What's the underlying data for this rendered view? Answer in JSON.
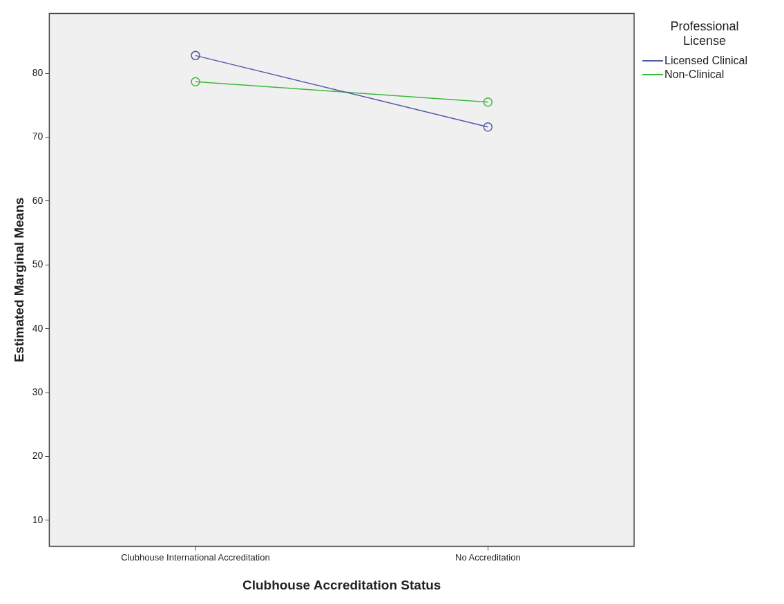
{
  "chart_data": {
    "type": "line",
    "xlabel": "Clubhouse Accreditation Status",
    "ylabel": "Estimated Marginal Means",
    "legend_title": "Professional License",
    "legend": "top right",
    "marker": "circle",
    "grid": false,
    "categories": [
      "Clubhouse International Accreditation",
      "No Accreditation"
    ],
    "ylim": [
      5.9,
      89.4
    ],
    "yticks": [
      10,
      20,
      30,
      40,
      50,
      60,
      70,
      80
    ],
    "series": [
      {
        "name": "Licensed Clinical",
        "color": "#5058a8",
        "values": [
          82.8,
          71.6
        ]
      },
      {
        "name": "Non-Clinical",
        "color": "#3cb83c",
        "values": [
          78.7,
          75.5
        ]
      }
    ]
  }
}
